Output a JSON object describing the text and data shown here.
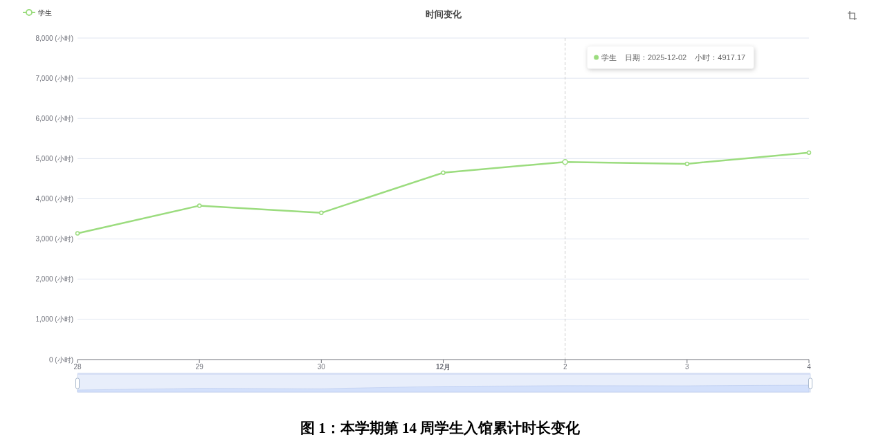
{
  "chart_data": {
    "type": "line",
    "title": "时间变化",
    "x": [
      "2025-11-28",
      "2025-11-29",
      "2025-11-30",
      "2025-12-01",
      "2025-12-02",
      "2025-12-03",
      "2025-12-04"
    ],
    "series": [
      {
        "name": "学生",
        "color": "#9bdc7e",
        "values": [
          3140,
          3830,
          3650,
          4650,
          4917.17,
          4870,
          5150
        ]
      }
    ],
    "xlim": [
      "2025-11-28",
      "2025-12-04"
    ],
    "xticks": [
      {
        "value": "2025-11-28",
        "label": "28"
      },
      {
        "value": "2025-11-29",
        "label": "29"
      },
      {
        "value": "2025-11-30",
        "label": "30"
      },
      {
        "value": "2025-12-01",
        "label": "12月"
      },
      {
        "value": "2025-12-02",
        "label": "2"
      },
      {
        "value": "2025-12-03",
        "label": "3"
      },
      {
        "value": "2025-12-04",
        "label": "4"
      }
    ],
    "ylim": [
      0,
      8000
    ],
    "yticks": [
      {
        "value": 0,
        "label": "0 (小时)"
      },
      {
        "value": 1000,
        "label": "1,000 (小时)"
      },
      {
        "value": 2000,
        "label": "2,000 (小时)"
      },
      {
        "value": 3000,
        "label": "3,000 (小时)"
      },
      {
        "value": 4000,
        "label": "4,000 (小时)"
      },
      {
        "value": 5000,
        "label": "5,000 (小时)"
      },
      {
        "value": 6000,
        "label": "6,000 (小时)"
      },
      {
        "value": 7000,
        "label": "7,000 (小时)"
      },
      {
        "value": 8000,
        "label": "8,000 (小时)"
      }
    ],
    "grid": "y",
    "legend": "top left",
    "marker": "circle",
    "line_style": "solid",
    "ref_lines": [
      {
        "axis": "x",
        "value": "2025-12-02",
        "color": "#cccccc",
        "line_style": "dashed"
      }
    ],
    "annotations": [
      "学生    日期：2025-12-02    小时：4917.17",
      "图 1：本学期第 14 周学生入馆累计时长变化"
    ]
  }
}
